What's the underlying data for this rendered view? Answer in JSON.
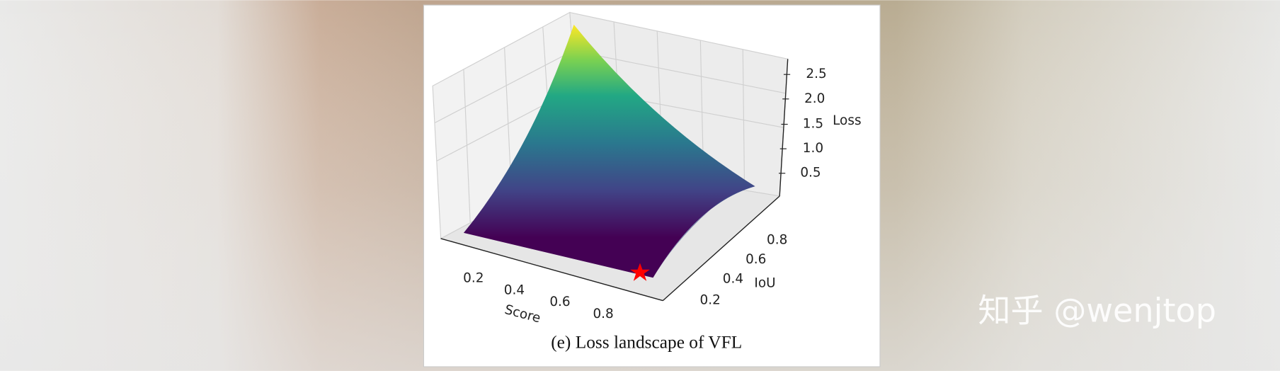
{
  "figure": {
    "caption": "(e) Loss landscape of VFL",
    "z_axis": {
      "label": "Loss",
      "ticks": [
        "2.5",
        "2.0",
        "1.5",
        "1.0",
        "0.5"
      ]
    },
    "y_axis": {
      "label": "IoU",
      "ticks": [
        "0.8",
        "0.6",
        "0.4",
        "0.2"
      ]
    },
    "x_axis": {
      "label": "Score",
      "ticks": [
        "0.2",
        "0.4",
        "0.6",
        "0.8"
      ]
    }
  },
  "watermark": "知乎 @wenjtop"
}
